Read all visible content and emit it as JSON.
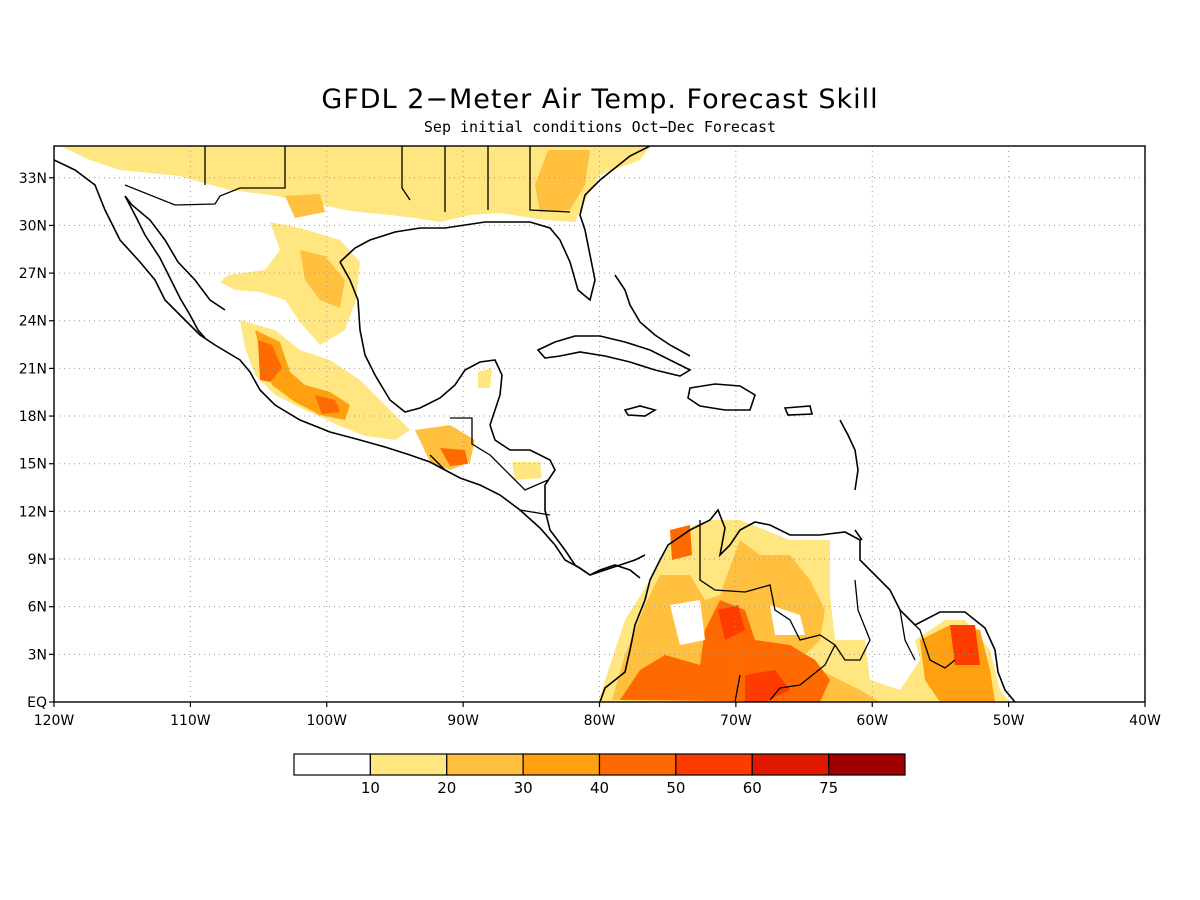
{
  "title": "GFDL 2−Meter Air Temp. Forecast Skill",
  "subtitle": "Sep initial conditions  Oct−Dec Forecast",
  "map": {
    "lon_range": [
      -120,
      -40
    ],
    "lat_range": [
      0,
      35
    ],
    "lat_ticks": [
      {
        "value": 33,
        "label": "33N"
      },
      {
        "value": 30,
        "label": "30N"
      },
      {
        "value": 27,
        "label": "27N"
      },
      {
        "value": 24,
        "label": "24N"
      },
      {
        "value": 21,
        "label": "21N"
      },
      {
        "value": 18,
        "label": "18N"
      },
      {
        "value": 15,
        "label": "15N"
      },
      {
        "value": 12,
        "label": "12N"
      },
      {
        "value": 9,
        "label": "9N"
      },
      {
        "value": 6,
        "label": "6N"
      },
      {
        "value": 3,
        "label": "3N"
      },
      {
        "value": 0,
        "label": "EQ"
      }
    ],
    "lon_ticks": [
      {
        "value": -120,
        "label": "120W"
      },
      {
        "value": -110,
        "label": "110W"
      },
      {
        "value": -100,
        "label": "100W"
      },
      {
        "value": -90,
        "label": "90W"
      },
      {
        "value": -80,
        "label": "80W"
      },
      {
        "value": -70,
        "label": "70W"
      },
      {
        "value": -60,
        "label": "60W"
      },
      {
        "value": -50,
        "label": "50W"
      },
      {
        "value": -40,
        "label": "40W"
      }
    ],
    "grid": "dotted"
  },
  "colorbar": {
    "levels": [
      "10",
      "20",
      "30",
      "40",
      "50",
      "60",
      "75"
    ],
    "colors": [
      "#ffffff",
      "#ffe680",
      "#ffc040",
      "#ffa010",
      "#ff6a00",
      "#ff3c00",
      "#e01800",
      "#a00000"
    ]
  }
}
